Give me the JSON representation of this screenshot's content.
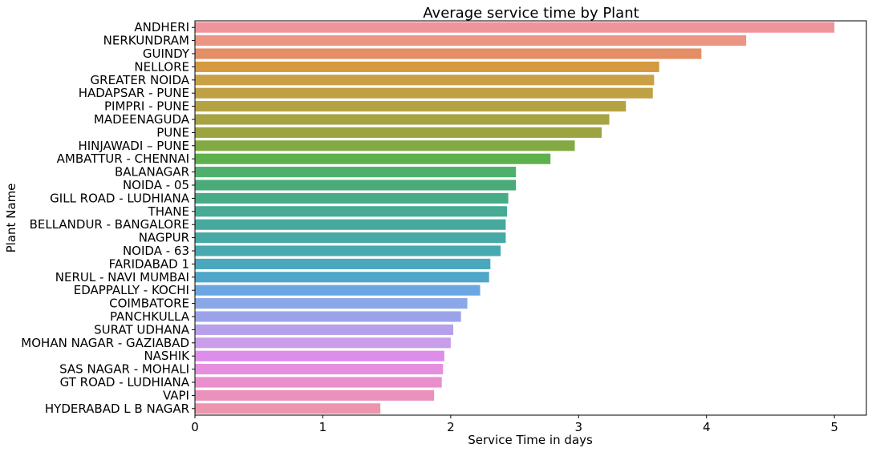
{
  "chart_data": {
    "type": "bar",
    "orientation": "horizontal",
    "title": "Average service time by Plant",
    "xlabel": "Service Time in days",
    "ylabel": "Plant Name",
    "xlim": [
      0,
      5.25
    ],
    "xticks": [
      0,
      1,
      2,
      3,
      4,
      5
    ],
    "grid": false,
    "categories": [
      "ANDHERI",
      "NERKUNDRAM",
      "GUINDY",
      "NELLORE",
      "GREATER NOIDA",
      "HADAPSAR - PUNE",
      "PIMPRI - PUNE",
      "MADEENAGUDA",
      "PUNE",
      "HINJAWADI – PUNE",
      "AMBATTUR - CHENNAI",
      "BALANAGAR",
      "NOIDA - 05",
      "GILL ROAD - LUDHIANA",
      "THANE",
      "BELLANDUR - BANGALORE",
      "NAGPUR",
      "NOIDA - 63",
      "FARIDABAD 1",
      "NERUL - NAVI MUMBAI",
      "EDAPPALLY - KOCHI",
      "COIMBATORE",
      "PANCHKULLA",
      "SURAT UDHANA",
      "MOHAN NAGAR - GAZIABAD",
      "NASHIK",
      "SAS NAGAR - MOHALI",
      "GT ROAD - LUDHIANA",
      "VAPI",
      "HYDERABAD L B NAGAR"
    ],
    "values": [
      5.0,
      4.31,
      3.96,
      3.63,
      3.59,
      3.58,
      3.37,
      3.24,
      3.18,
      2.97,
      2.78,
      2.51,
      2.51,
      2.45,
      2.44,
      2.43,
      2.43,
      2.39,
      2.31,
      2.3,
      2.23,
      2.13,
      2.08,
      2.02,
      2.0,
      1.95,
      1.94,
      1.93,
      1.87,
      1.45
    ],
    "colors": [
      "#ef949a",
      "#eb9684",
      "#e38e64",
      "#d59a3f",
      "#c9a043",
      "#bfa043",
      "#b5a343",
      "#a6a442",
      "#9ca441",
      "#83aa42",
      "#5eb04d",
      "#4eb06c",
      "#4aab7a",
      "#48ab88",
      "#46aa94",
      "#46a99e",
      "#47a9a6",
      "#48a8af",
      "#4aa8bc",
      "#4ea6c9",
      "#6aa7e2",
      "#8aa7e8",
      "#9aa3ea",
      "#b7a0ea",
      "#c99de9",
      "#dc8eea",
      "#e68fdf",
      "#ea8fce",
      "#eb92bc",
      "#ed95ad"
    ]
  }
}
